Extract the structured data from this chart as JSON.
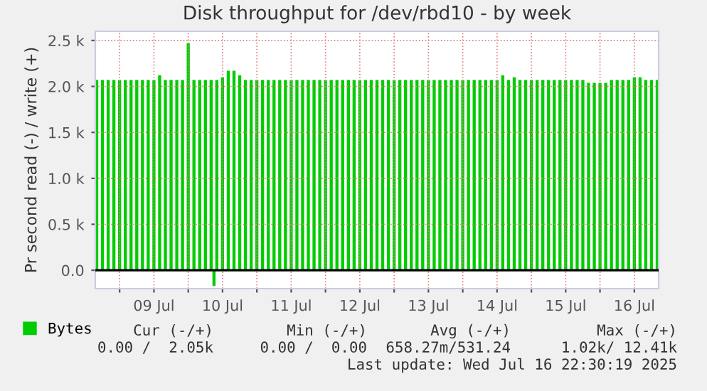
{
  "chart_data": {
    "type": "bar",
    "title": "Disk throughput for /dev/rbd10 - by week",
    "ylabel": "Pr second read (-) / write (+)",
    "xlim": [
      "2025-07-08T15:30",
      "2025-07-16T20:30"
    ],
    "xticks": [
      {
        "value": "2025-07-09T00:00",
        "label": null
      },
      {
        "value": "2025-07-09T12:00",
        "label": "09 Jul"
      },
      {
        "value": "2025-07-10T00:00",
        "label": null
      },
      {
        "value": "2025-07-10T12:00",
        "label": "10 Jul"
      },
      {
        "value": "2025-07-11T00:00",
        "label": null
      },
      {
        "value": "2025-07-11T12:00",
        "label": "11 Jul"
      },
      {
        "value": "2025-07-12T00:00",
        "label": null
      },
      {
        "value": "2025-07-12T12:00",
        "label": "12 Jul"
      },
      {
        "value": "2025-07-13T00:00",
        "label": null
      },
      {
        "value": "2025-07-13T12:00",
        "label": "13 Jul"
      },
      {
        "value": "2025-07-14T00:00",
        "label": null
      },
      {
        "value": "2025-07-14T12:00",
        "label": "14 Jul"
      },
      {
        "value": "2025-07-15T00:00",
        "label": null
      },
      {
        "value": "2025-07-15T12:00",
        "label": "15 Jul"
      },
      {
        "value": "2025-07-16T00:00",
        "label": null
      },
      {
        "value": "2025-07-16T12:00",
        "label": "16 Jul"
      }
    ],
    "ylim": [
      -200,
      2600
    ],
    "yticks": [
      {
        "value": 0,
        "label": "0.0"
      },
      {
        "value": 500,
        "label": "0.5 k"
      },
      {
        "value": 1000,
        "label": "1.0 k"
      },
      {
        "value": 1500,
        "label": "1.5 k"
      },
      {
        "value": 2000,
        "label": "2.0 k"
      },
      {
        "value": 2500,
        "label": "2.5 k"
      }
    ],
    "grid": true,
    "legend": "bottom left",
    "ref_lines": [
      {
        "axis": "y",
        "value": 0,
        "color": "#000000"
      }
    ],
    "series": [
      {
        "name": "Bytes",
        "color": "#00cc00",
        "x": [
          "2025-07-08T16:00",
          "2025-07-08T18:00",
          "2025-07-08T20:00",
          "2025-07-08T22:00",
          "2025-07-09T00:00",
          "2025-07-09T02:00",
          "2025-07-09T04:00",
          "2025-07-09T06:00",
          "2025-07-09T08:00",
          "2025-07-09T10:00",
          "2025-07-09T12:00",
          "2025-07-09T14:00",
          "2025-07-09T16:00",
          "2025-07-09T18:00",
          "2025-07-09T20:00",
          "2025-07-09T22:00",
          "2025-07-10T00:00",
          "2025-07-10T02:00",
          "2025-07-10T04:00",
          "2025-07-10T06:00",
          "2025-07-10T08:00",
          "2025-07-10T10:00",
          "2025-07-10T12:00",
          "2025-07-10T14:00",
          "2025-07-10T16:00",
          "2025-07-10T18:00",
          "2025-07-10T20:00",
          "2025-07-10T22:00",
          "2025-07-11T00:00",
          "2025-07-11T02:00",
          "2025-07-11T04:00",
          "2025-07-11T06:00",
          "2025-07-11T08:00",
          "2025-07-11T10:00",
          "2025-07-11T12:00",
          "2025-07-11T14:00",
          "2025-07-11T16:00",
          "2025-07-11T18:00",
          "2025-07-11T20:00",
          "2025-07-11T22:00",
          "2025-07-12T00:00",
          "2025-07-12T02:00",
          "2025-07-12T04:00",
          "2025-07-12T06:00",
          "2025-07-12T08:00",
          "2025-07-12T10:00",
          "2025-07-12T12:00",
          "2025-07-12T14:00",
          "2025-07-12T16:00",
          "2025-07-12T18:00",
          "2025-07-12T20:00",
          "2025-07-12T22:00",
          "2025-07-13T00:00",
          "2025-07-13T02:00",
          "2025-07-13T04:00",
          "2025-07-13T06:00",
          "2025-07-13T08:00",
          "2025-07-13T10:00",
          "2025-07-13T12:00",
          "2025-07-13T14:00",
          "2025-07-13T16:00",
          "2025-07-13T18:00",
          "2025-07-13T20:00",
          "2025-07-13T22:00",
          "2025-07-14T00:00",
          "2025-07-14T02:00",
          "2025-07-14T04:00",
          "2025-07-14T06:00",
          "2025-07-14T08:00",
          "2025-07-14T10:00",
          "2025-07-14T12:00",
          "2025-07-14T14:00",
          "2025-07-14T16:00",
          "2025-07-14T18:00",
          "2025-07-14T20:00",
          "2025-07-14T22:00",
          "2025-07-15T00:00",
          "2025-07-15T02:00",
          "2025-07-15T04:00",
          "2025-07-15T06:00",
          "2025-07-15T08:00",
          "2025-07-15T10:00",
          "2025-07-15T12:00",
          "2025-07-15T14:00",
          "2025-07-15T16:00",
          "2025-07-15T18:00",
          "2025-07-15T20:00",
          "2025-07-15T22:00",
          "2025-07-16T00:00",
          "2025-07-16T02:00",
          "2025-07-16T04:00",
          "2025-07-16T06:00",
          "2025-07-16T08:00",
          "2025-07-16T10:00",
          "2025-07-16T12:00",
          "2025-07-16T14:00",
          "2025-07-16T16:00",
          "2025-07-16T18:00",
          "2025-07-16T20:00"
        ],
        "values": [
          2070,
          2070,
          2070,
          2070,
          2070,
          2070,
          2070,
          2070,
          2070,
          2070,
          2070,
          2120,
          2070,
          2070,
          2070,
          2070,
          2470,
          2070,
          2070,
          2070,
          2070,
          2070,
          2100,
          2170,
          2170,
          2120,
          2070,
          2070,
          2070,
          2070,
          2070,
          2070,
          2070,
          2070,
          2070,
          2070,
          2070,
          2070,
          2070,
          2070,
          2070,
          2070,
          2070,
          2070,
          2070,
          2070,
          2070,
          2070,
          2070,
          2070,
          2070,
          2070,
          2070,
          2070,
          2070,
          2070,
          2070,
          2070,
          2070,
          2070,
          2070,
          2070,
          2070,
          2070,
          2070,
          2070,
          2070,
          2070,
          2070,
          2070,
          2070,
          2120,
          2070,
          2100,
          2070,
          2070,
          2070,
          2070,
          2070,
          2070,
          2070,
          2070,
          2070,
          2070,
          2070,
          2070,
          2040,
          2040,
          2040,
          2040,
          2070,
          2070,
          2070,
          2070,
          2100,
          2100,
          2070,
          2070,
          2070
        ]
      },
      {
        "color": "#00cc00",
        "x": [
          "2025-07-10T09:00"
        ],
        "values": [
          -170
        ]
      }
    ],
    "annotations": [
      "Cur (-/+)",
      "Min (-/+)",
      "Avg (-/+)",
      "Max (-/+)",
      "0.00 /  2.05k",
      "0.00 /  0.00",
      "658.27m/531.24",
      "1.02k/ 12.41k",
      "Last update: Wed Jul 16 22:30:19 2025"
    ]
  }
}
